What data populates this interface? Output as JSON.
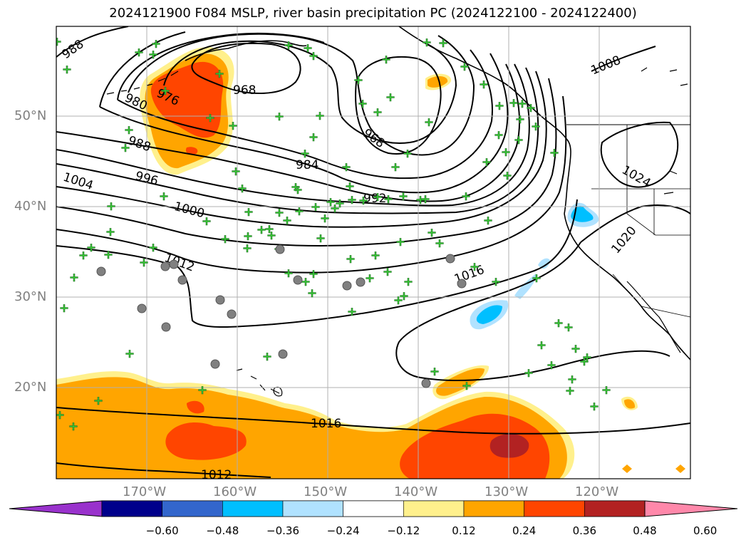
{
  "title": "2024121900 F084 MSLP, river basin precipitation PC (2024122100 - 2024122400)",
  "map": {
    "lon_range": [
      -180,
      -110
    ],
    "lat_range": [
      10,
      60
    ],
    "lat_labels": [
      "50°N",
      "40°N",
      "30°N",
      "20°N"
    ],
    "lat_values": [
      50,
      40,
      30,
      20
    ],
    "lon_labels": [
      "170°W",
      "160°W",
      "150°W",
      "140°W",
      "130°W",
      "120°W"
    ],
    "lon_values": [
      -170,
      -160,
      -150,
      -140,
      -130,
      -120
    ],
    "grid": true,
    "contour_labels": [
      "988",
      "968",
      "976",
      "980",
      "988",
      "968",
      "1008",
      "984",
      "1004",
      "996",
      "1000",
      "992",
      "1024",
      "1020",
      "1012",
      "1016",
      "1016",
      "1012"
    ]
  },
  "colorbar": {
    "tick_labels": [
      "−0.60",
      "−0.48",
      "−0.36",
      "−0.24",
      "−0.12",
      "0.12",
      "0.24",
      "0.36",
      "0.48",
      "0.60"
    ],
    "colors": [
      "#9932cc",
      "#00008b",
      "#3366cc",
      "#00bfff",
      "#b0e2ff",
      "#ffffff",
      "#fff08c",
      "#ffa500",
      "#ff4500",
      "#b22222",
      "#ff88aa"
    ]
  },
  "colors": {
    "precip_low": "#fff08c",
    "precip_mid": "#ffa500",
    "precip_high": "#ff4500",
    "precip_max": "#b22222",
    "neg_mid": "#00bfff",
    "neg_low": "#b0e2ff",
    "station_marker": "#33cc33",
    "station_circle": "#808080"
  }
}
